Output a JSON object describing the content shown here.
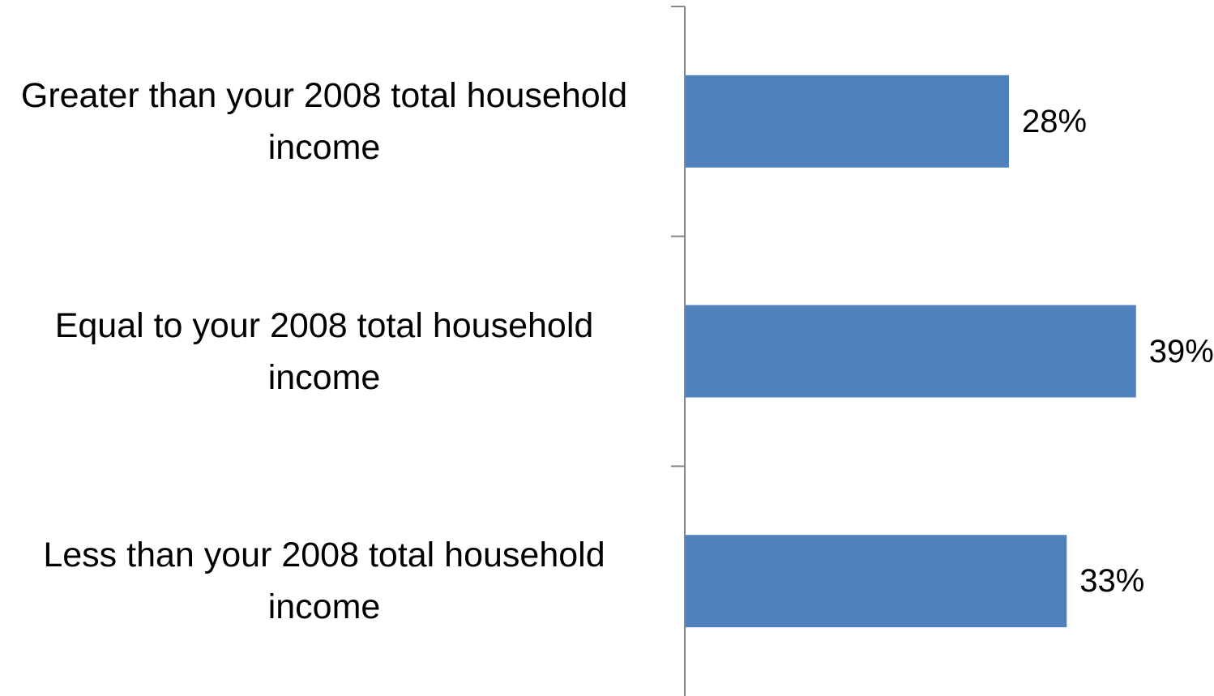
{
  "chart_data": {
    "type": "bar",
    "orientation": "horizontal",
    "categories": [
      "Greater than your 2008 total household income",
      "Equal to your 2008 total household income",
      "Less than your 2008 total household income"
    ],
    "values": [
      28,
      39,
      33
    ],
    "value_labels": [
      "28%",
      "39%",
      "33%"
    ],
    "unit": "%",
    "title": "",
    "xlabel": "",
    "ylabel": "",
    "xlim": [
      0,
      40
    ],
    "grid": false,
    "legend": "none",
    "bar_color": "#4f81bd",
    "axis_color": "#868686"
  }
}
